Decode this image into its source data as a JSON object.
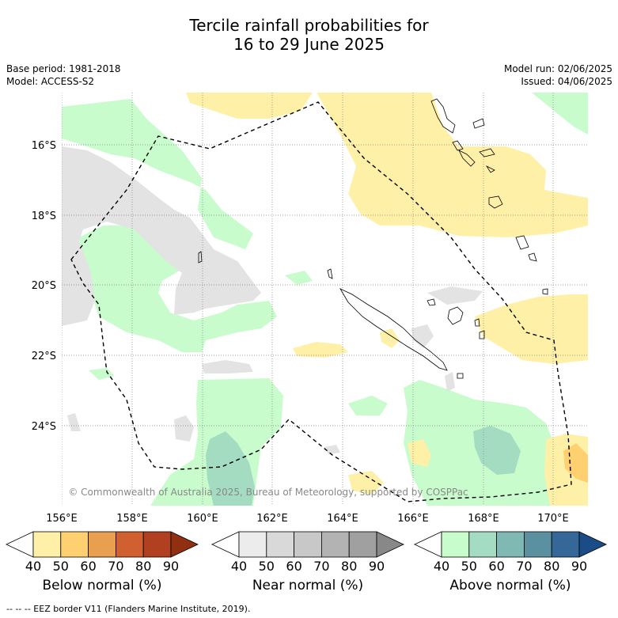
{
  "header": {
    "title_line1": "Tercile rainfall probabilities for",
    "title_line2": "16 to 29 June 2025",
    "base_period": "Base period: 1981-2018",
    "model": "Model: ACCESS-S2",
    "model_run": "Model run: 02/06/2025",
    "issued": "Issued: 04/06/2025"
  },
  "map": {
    "lat_labels": [
      "16°S",
      "18°S",
      "20°S",
      "22°S",
      "24°S"
    ],
    "lon_labels": [
      "156°E",
      "158°E",
      "160°E",
      "162°E",
      "164°E",
      "166°E",
      "168°E",
      "170°E"
    ],
    "copyright": "© Commonwealth of Australia 2025, Bureau of Meteorology, supported by COSPPac"
  },
  "colorbars": [
    {
      "name": "below",
      "label": "Below normal (%)",
      "ticks": [
        "40",
        "50",
        "60",
        "70",
        "80",
        "90"
      ],
      "colors": [
        "#ffffff",
        "#fff0a8",
        "#ffd070",
        "#e8a050",
        "#d06030",
        "#b04020",
        "#903010"
      ]
    },
    {
      "name": "near",
      "label": "Near normal (%)",
      "ticks": [
        "40",
        "50",
        "60",
        "70",
        "80",
        "90"
      ],
      "colors": [
        "#ffffff",
        "#ececec",
        "#d9d9d9",
        "#c8c8c8",
        "#b3b3b3",
        "#a0a0a0",
        "#888888"
      ]
    },
    {
      "name": "above",
      "label": "Above normal (%)",
      "ticks": [
        "40",
        "50",
        "60",
        "70",
        "80",
        "90"
      ],
      "colors": [
        "#ffffff",
        "#c8fccc",
        "#a3dcc0",
        "#80b8b4",
        "#5a90a0",
        "#356898",
        "#1a4d88"
      ]
    }
  ],
  "footer": "--  --  -- EEZ border V11 (Flanders Marine Institute, 2019)."
}
